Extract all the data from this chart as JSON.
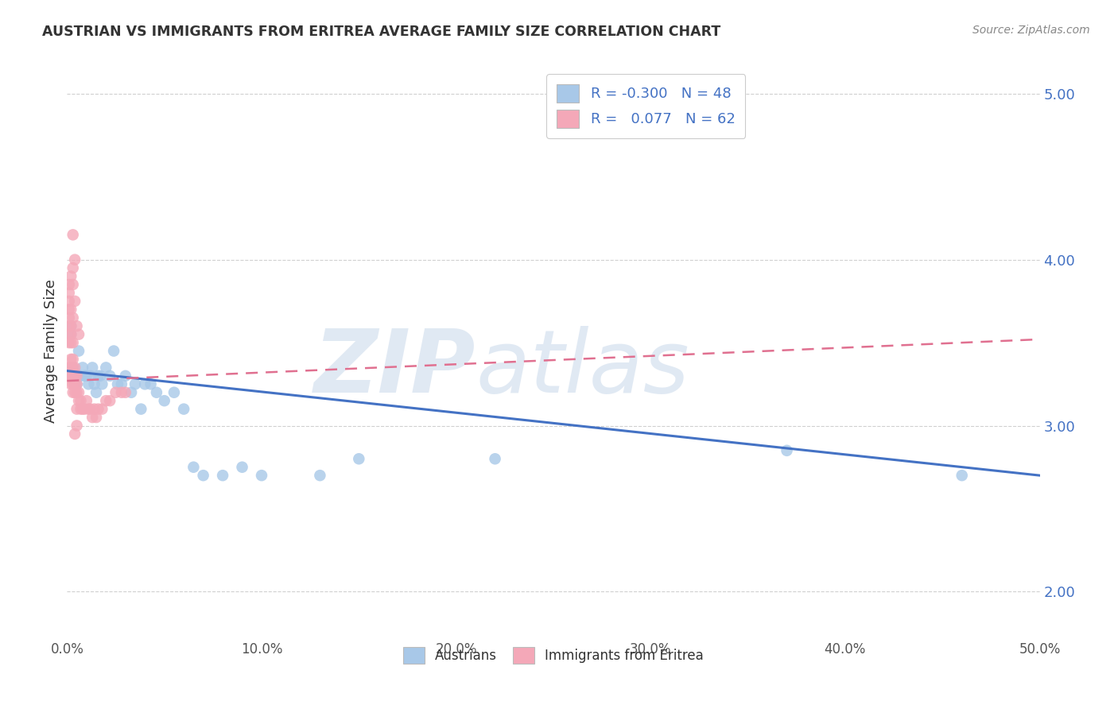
{
  "title": "AUSTRIAN VS IMMIGRANTS FROM ERITREA AVERAGE FAMILY SIZE CORRELATION CHART",
  "source": "Source: ZipAtlas.com",
  "ylabel": "Average Family Size",
  "y_ticks": [
    2.0,
    3.0,
    4.0,
    5.0
  ],
  "x_min": 0.0,
  "x_max": 0.5,
  "y_min": 1.72,
  "y_max": 5.18,
  "legend_labels_bottom": [
    "Austrians",
    "Immigrants from Eritrea"
  ],
  "austrians_color": "#a8c8e8",
  "eritreans_color": "#f4a8b8",
  "trend_austrians_color": "#4472c4",
  "trend_eritreans_color": "#e07090",
  "background_color": "#ffffff",
  "tick_color": "#4472c4",
  "grid_color": "#d0d0d0",
  "austrians_x": [
    0.001,
    0.002,
    0.002,
    0.003,
    0.003,
    0.004,
    0.004,
    0.005,
    0.005,
    0.006,
    0.006,
    0.007,
    0.008,
    0.009,
    0.01,
    0.011,
    0.012,
    0.013,
    0.014,
    0.015,
    0.016,
    0.017,
    0.018,
    0.02,
    0.022,
    0.024,
    0.026,
    0.028,
    0.03,
    0.033,
    0.035,
    0.038,
    0.04,
    0.043,
    0.046,
    0.05,
    0.055,
    0.06,
    0.065,
    0.07,
    0.08,
    0.09,
    0.1,
    0.13,
    0.15,
    0.22,
    0.37,
    0.46
  ],
  "austrians_y": [
    3.3,
    3.55,
    3.6,
    3.3,
    3.35,
    3.25,
    3.3,
    3.25,
    3.3,
    3.3,
    3.45,
    3.3,
    3.35,
    3.3,
    3.3,
    3.25,
    3.3,
    3.35,
    3.25,
    3.2,
    3.3,
    3.3,
    3.25,
    3.35,
    3.3,
    3.45,
    3.25,
    3.25,
    3.3,
    3.2,
    3.25,
    3.1,
    3.25,
    3.25,
    3.2,
    3.15,
    3.2,
    3.1,
    2.75,
    2.7,
    2.7,
    2.75,
    2.7,
    2.7,
    2.8,
    2.8,
    2.85,
    2.7
  ],
  "eritreans_x": [
    0.001,
    0.001,
    0.001,
    0.001,
    0.001,
    0.001,
    0.001,
    0.001,
    0.001,
    0.001,
    0.002,
    0.002,
    0.002,
    0.002,
    0.002,
    0.002,
    0.002,
    0.003,
    0.003,
    0.003,
    0.003,
    0.003,
    0.003,
    0.004,
    0.004,
    0.004,
    0.004,
    0.005,
    0.005,
    0.005,
    0.005,
    0.006,
    0.006,
    0.007,
    0.007,
    0.008,
    0.009,
    0.01,
    0.011,
    0.012,
    0.013,
    0.014,
    0.015,
    0.016,
    0.018,
    0.02,
    0.022,
    0.025,
    0.028,
    0.03,
    0.003,
    0.004,
    0.002,
    0.003,
    0.003,
    0.004,
    0.002,
    0.003,
    0.005,
    0.006,
    0.004,
    0.005
  ],
  "eritreans_y": [
    3.3,
    3.35,
    3.5,
    3.55,
    3.6,
    3.65,
    3.7,
    3.75,
    3.8,
    3.85,
    3.25,
    3.3,
    3.35,
    3.4,
    3.5,
    3.55,
    3.6,
    3.2,
    3.25,
    3.3,
    3.35,
    3.4,
    3.5,
    3.2,
    3.25,
    3.3,
    3.35,
    3.2,
    3.25,
    3.3,
    3.1,
    3.15,
    3.2,
    3.1,
    3.15,
    3.1,
    3.1,
    3.15,
    3.1,
    3.1,
    3.05,
    3.1,
    3.05,
    3.1,
    3.1,
    3.15,
    3.15,
    3.2,
    3.2,
    3.2,
    4.15,
    4.0,
    3.9,
    3.95,
    3.85,
    3.75,
    3.7,
    3.65,
    3.6,
    3.55,
    2.95,
    3.0
  ],
  "trend_austrians_x0": 0.0,
  "trend_austrians_y0": 3.33,
  "trend_austrians_x1": 0.5,
  "trend_austrians_y1": 2.7,
  "trend_eritreans_x0": 0.0,
  "trend_eritreans_y0": 3.27,
  "trend_eritreans_x1": 0.5,
  "trend_eritreans_y1": 3.52
}
